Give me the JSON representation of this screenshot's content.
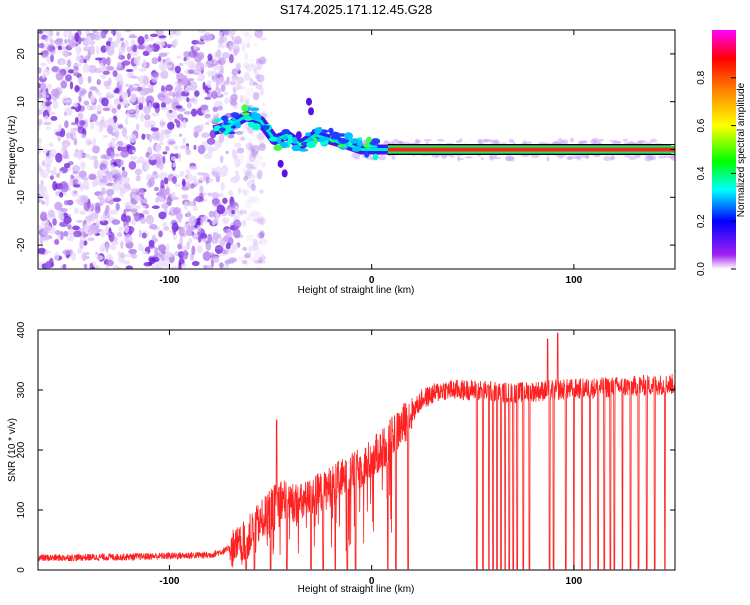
{
  "title": "S174.2025.171.12.45.G28",
  "chart_data": [
    {
      "type": "heatmap",
      "xlabel": "Height of straight line (km)",
      "ylabel": "Frequency (Hz)",
      "xlim": [
        -165,
        150
      ],
      "ylim": [
        -25,
        25
      ],
      "xticks": [
        -100,
        0,
        100
      ],
      "yticks": [
        -20,
        -10,
        0,
        10,
        20
      ],
      "colorbar": {
        "label": "Normalized spectral amplitude",
        "range": [
          0,
          1
        ],
        "ticks": [
          "0.0",
          "0.2",
          "0.4",
          "0.6",
          "0.8"
        ],
        "colors": [
          "#ffffff",
          "#a020f0",
          "#0000ff",
          "#00ffff",
          "#00ff00",
          "#ffff00",
          "#ff8000",
          "#ff0000",
          "#ff00ff"
        ]
      },
      "signal_track": [
        {
          "x": -78,
          "y": 4
        },
        {
          "x": -70,
          "y": 5
        },
        {
          "x": -62,
          "y": 7
        },
        {
          "x": -55,
          "y": 6
        },
        {
          "x": -48,
          "y": 2
        },
        {
          "x": -42,
          "y": 3
        },
        {
          "x": -35,
          "y": 1
        },
        {
          "x": -28,
          "y": 3
        },
        {
          "x": -20,
          "y": 2
        },
        {
          "x": -12,
          "y": 1
        },
        {
          "x": -5,
          "y": 0
        },
        {
          "x": 10,
          "y": 0
        },
        {
          "x": 50,
          "y": 0
        },
        {
          "x": 100,
          "y": 0
        },
        {
          "x": 148,
          "y": 0
        }
      ],
      "noise_region": {
        "x_start": -165,
        "x_end": -65
      }
    },
    {
      "type": "line",
      "xlabel": "Height of straight line (km)",
      "ylabel": "SNR (10 * v/v)",
      "xlim": [
        -165,
        150
      ],
      "ylim": [
        0,
        400
      ],
      "xticks": [
        -100,
        0,
        100
      ],
      "yticks": [
        0,
        100,
        200,
        300,
        400
      ],
      "color": "#ff2020",
      "trend": [
        {
          "x": -165,
          "y": 20
        },
        {
          "x": -120,
          "y": 22
        },
        {
          "x": -80,
          "y": 25
        },
        {
          "x": -65,
          "y": 40
        },
        {
          "x": -55,
          "y": 80
        },
        {
          "x": -45,
          "y": 120
        },
        {
          "x": -35,
          "y": 110
        },
        {
          "x": -25,
          "y": 130
        },
        {
          "x": -15,
          "y": 150
        },
        {
          "x": -5,
          "y": 170
        },
        {
          "x": 5,
          "y": 200
        },
        {
          "x": 15,
          "y": 240
        },
        {
          "x": 25,
          "y": 285
        },
        {
          "x": 35,
          "y": 300
        },
        {
          "x": 50,
          "y": 300
        },
        {
          "x": 70,
          "y": 295
        },
        {
          "x": 90,
          "y": 300
        },
        {
          "x": 120,
          "y": 305
        },
        {
          "x": 150,
          "y": 310
        }
      ],
      "dropouts_x": [
        -62,
        -58,
        -50,
        -42,
        -30,
        -24,
        -18,
        -12,
        -8,
        8,
        12,
        18,
        52,
        55,
        58,
        60,
        62,
        64,
        66,
        68,
        70,
        72,
        75,
        78,
        88,
        90,
        92,
        96,
        100,
        104,
        108,
        112,
        115,
        118,
        120,
        124,
        128,
        132,
        136,
        140,
        145
      ],
      "spikes": [
        {
          "x": -47,
          "y": 250
        },
        {
          "x": 92,
          "y": 395
        },
        {
          "x": 87,
          "y": 385
        }
      ]
    }
  ]
}
